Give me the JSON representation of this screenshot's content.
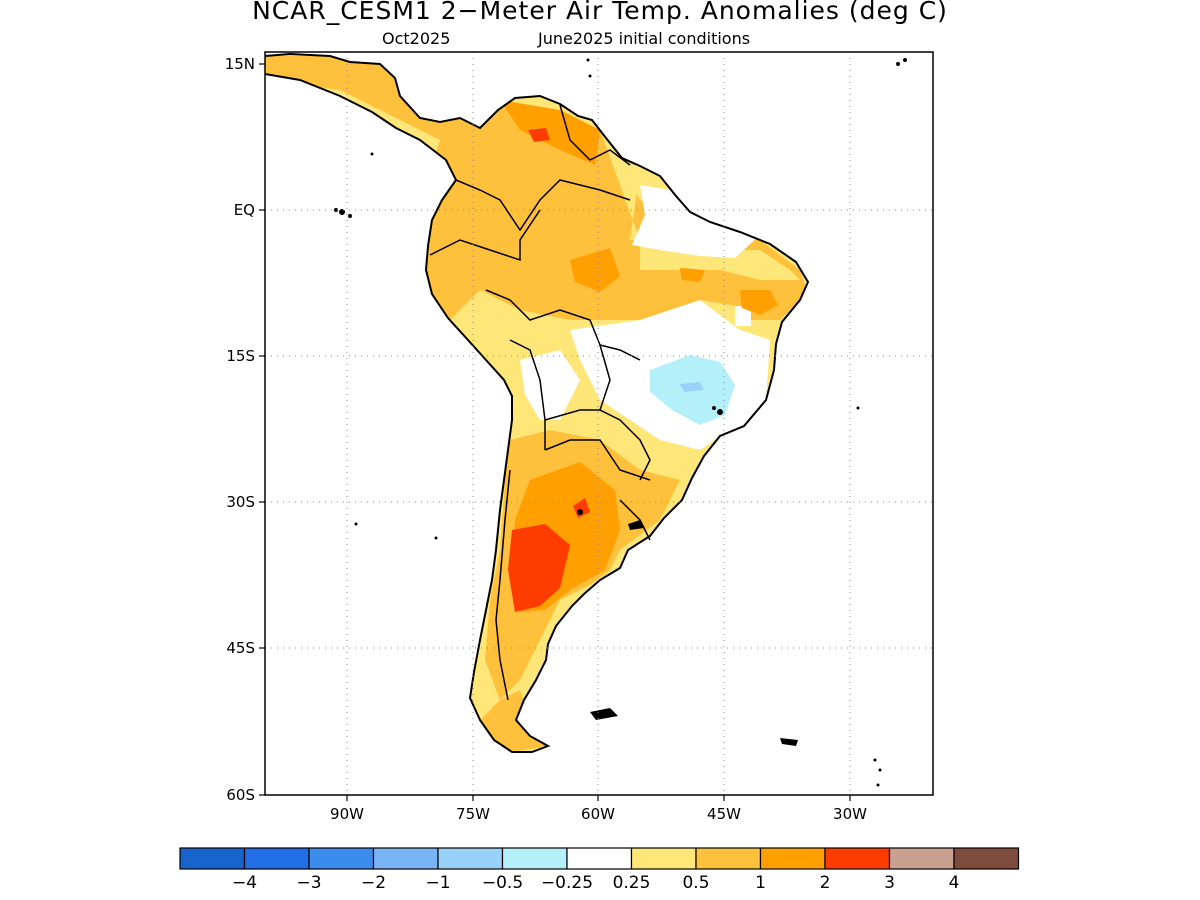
{
  "title": "NCAR_CESM1 2−Meter Air Temp. Anomalies (deg C)",
  "subtitle_left": "Oct2025",
  "subtitle_right": "June2025 initial conditions",
  "lat_ticks": [
    "15N",
    "EQ",
    "15S",
    "30S",
    "45S",
    "60S"
  ],
  "lon_ticks": [
    "90W",
    "75W",
    "60W",
    "45W",
    "30W"
  ],
  "colorbar": {
    "labels": [
      "−4",
      "−3",
      "−2",
      "−1",
      "−0.5",
      "−0.25",
      "0.25",
      "0.5",
      "1",
      "2",
      "3",
      "4"
    ],
    "colors": [
      "#1764cc",
      "#226ee6",
      "#3c8ced",
      "#78b4f6",
      "#96d2fa",
      "#b4f0fa",
      "#ffffff",
      "#ffe678",
      "#ffc03c",
      "#ffa000",
      "#ff3c00",
      "#c8a090",
      "#7d4c3c"
    ]
  }
}
